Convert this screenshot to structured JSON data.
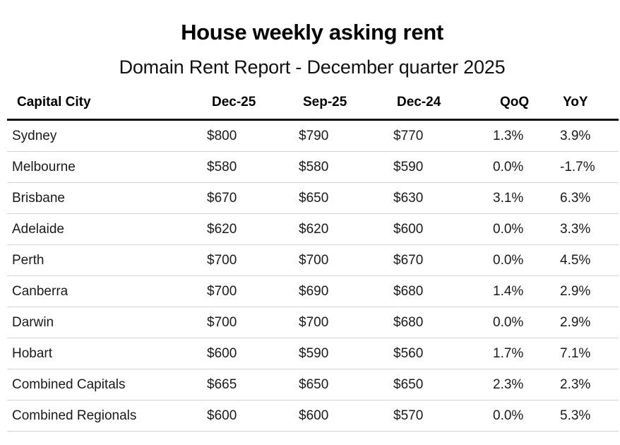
{
  "title": "House weekly asking rent",
  "subtitle": "Domain Rent Report - December quarter 2025",
  "table": {
    "headers": {
      "city": "Capital City",
      "dec25": "Dec-25",
      "sep25": "Sep-25",
      "dec24": "Dec-24",
      "qoq": "QoQ",
      "yoy": "YoY"
    },
    "rows": [
      {
        "city": "Sydney",
        "dec25": "$800",
        "sep25": "$790",
        "dec24": "$770",
        "qoq": "1.3%",
        "yoy": "3.9%"
      },
      {
        "city": "Melbourne",
        "dec25": "$580",
        "sep25": "$580",
        "dec24": "$590",
        "qoq": "0.0%",
        "yoy": "-1.7%"
      },
      {
        "city": "Brisbane",
        "dec25": "$670",
        "sep25": "$650",
        "dec24": "$630",
        "qoq": "3.1%",
        "yoy": "6.3%"
      },
      {
        "city": "Adelaide",
        "dec25": "$620",
        "sep25": "$620",
        "dec24": "$600",
        "qoq": "0.0%",
        "yoy": "3.3%"
      },
      {
        "city": "Perth",
        "dec25": "$700",
        "sep25": "$700",
        "dec24": "$670",
        "qoq": "0.0%",
        "yoy": "4.5%"
      },
      {
        "city": "Canberra",
        "dec25": "$700",
        "sep25": "$690",
        "dec24": "$680",
        "qoq": "1.4%",
        "yoy": "2.9%"
      },
      {
        "city": "Darwin",
        "dec25": "$700",
        "sep25": "$700",
        "dec24": "$680",
        "qoq": "0.0%",
        "yoy": "2.9%"
      },
      {
        "city": "Hobart",
        "dec25": "$600",
        "sep25": "$590",
        "dec24": "$560",
        "qoq": "1.7%",
        "yoy": "7.1%"
      },
      {
        "city": "Combined Capitals",
        "dec25": "$665",
        "sep25": "$650",
        "dec24": "$650",
        "qoq": "2.3%",
        "yoy": "2.3%"
      },
      {
        "city": "Combined Regionals",
        "dec25": "$600",
        "sep25": "$600",
        "dec24": "$570",
        "qoq": "0.0%",
        "yoy": "5.3%"
      }
    ]
  }
}
